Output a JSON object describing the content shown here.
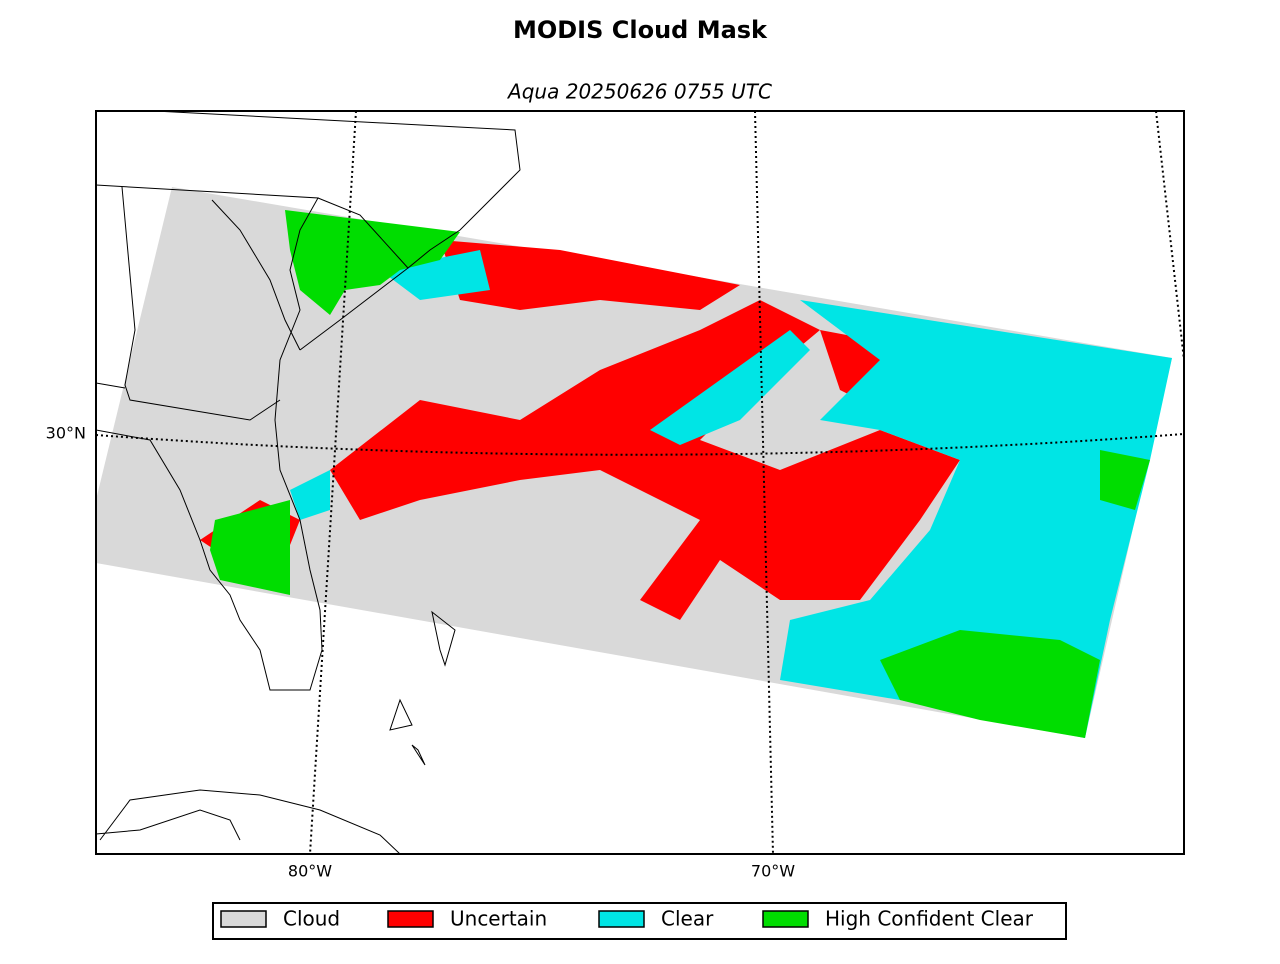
{
  "title": "MODIS Cloud Mask",
  "subtitle": "Aqua 20250626 0755 UTC",
  "graticule": {
    "lon_labels": [
      "80°W",
      "70°W"
    ],
    "lat_labels": [
      "30°N"
    ]
  },
  "legend": [
    {
      "label": "Cloud",
      "color": "#d9d9d9"
    },
    {
      "label": "Uncertain",
      "color": "#ff0000"
    },
    {
      "label": "Clear",
      "color": "#00e5e5"
    },
    {
      "label": "High Confident Clear",
      "color": "#00dd00"
    }
  ]
}
